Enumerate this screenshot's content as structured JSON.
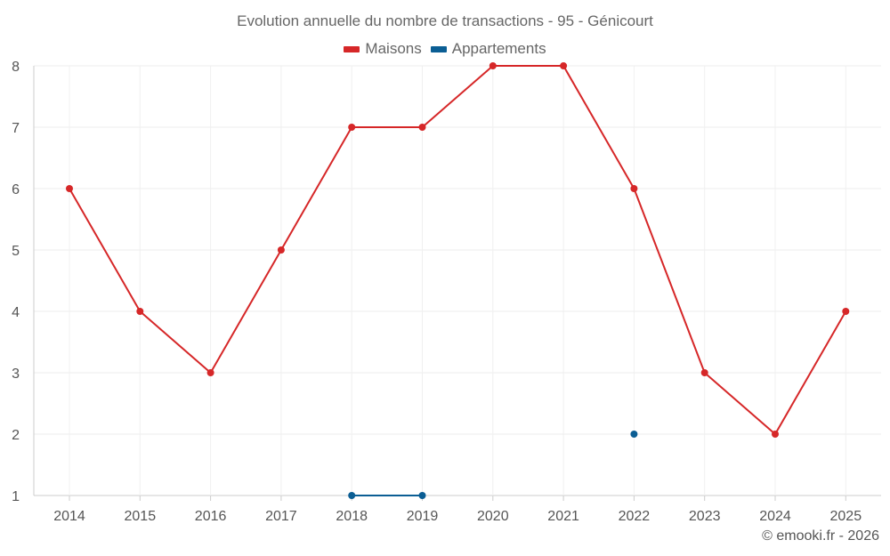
{
  "chart_data": {
    "type": "line",
    "title": "Evolution annuelle du nombre de transactions - 95 - Génicourt",
    "categories": [
      "2014",
      "2015",
      "2016",
      "2017",
      "2018",
      "2019",
      "2020",
      "2021",
      "2022",
      "2023",
      "2024",
      "2025"
    ],
    "series": [
      {
        "name": "Maisons",
        "color": "#d62728",
        "values": [
          6,
          4,
          3,
          5,
          7,
          7,
          8,
          8,
          6,
          3,
          2,
          4
        ]
      },
      {
        "name": "Appartements",
        "color": "#0b5e94",
        "values": [
          null,
          null,
          null,
          null,
          1,
          1,
          null,
          null,
          2,
          null,
          null,
          null
        ]
      }
    ],
    "ylim": [
      1,
      8
    ],
    "yticks": [
      "1",
      "2",
      "3",
      "4",
      "5",
      "6",
      "7",
      "8"
    ],
    "xlabel": "",
    "ylabel": "",
    "grid": true,
    "legend_position": "top-center"
  },
  "credit": "© emooki.fr - 2026"
}
